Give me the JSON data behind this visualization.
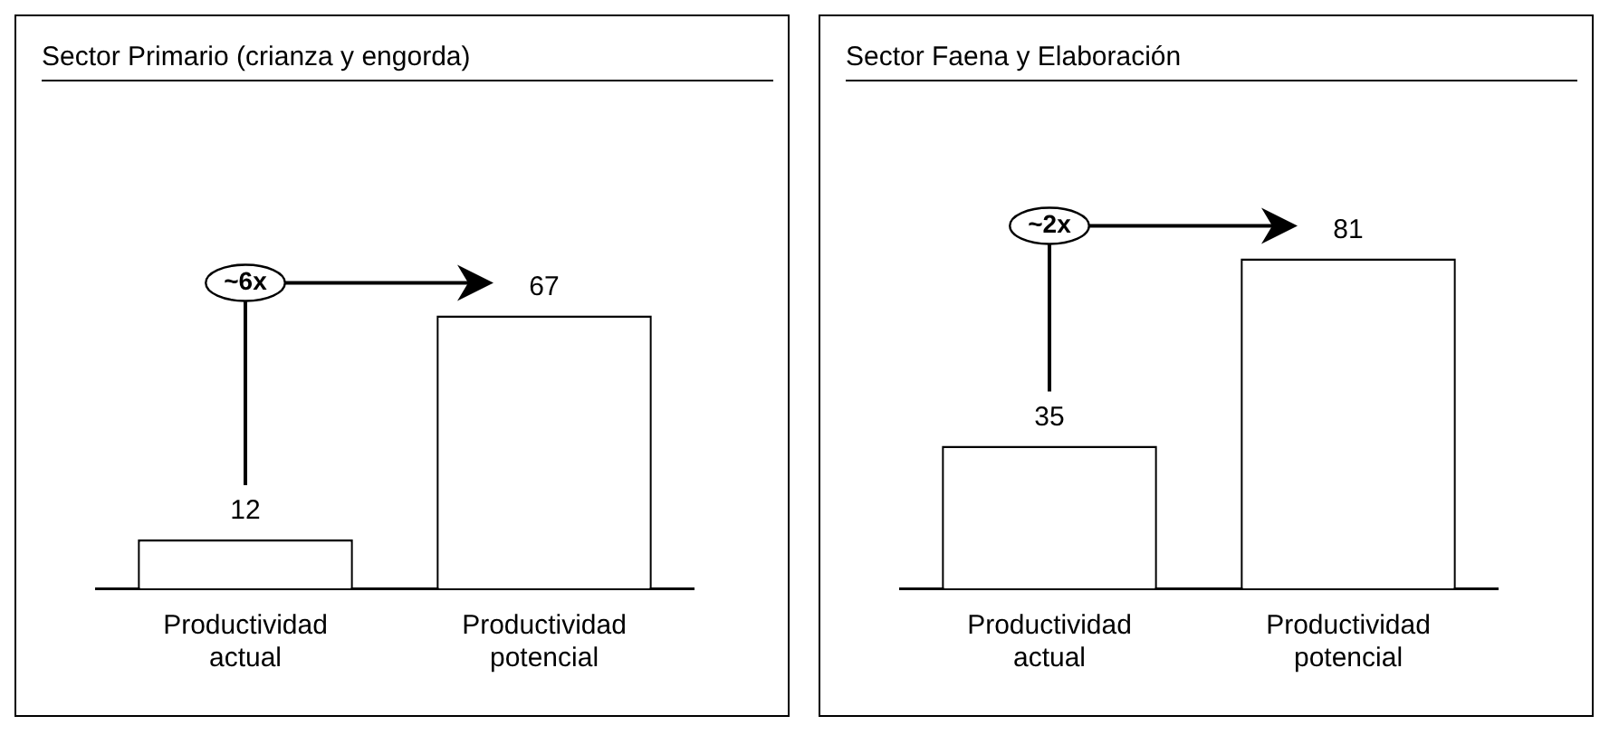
{
  "chart_data": [
    {
      "type": "bar",
      "title": "Sector Primario (crianza y engorda)",
      "categories": [
        "Productividad actual",
        "Productividad potencial"
      ],
      "values": [
        12,
        67
      ],
      "color": "#ffffff",
      "data_labels": true,
      "grid": false,
      "legend": false,
      "annotations": [
        "~6x"
      ]
    },
    {
      "type": "bar",
      "title": "Sector Faena y Elaboración",
      "categories": [
        "Productividad actual",
        "Productividad potencial"
      ],
      "values": [
        35,
        81
      ],
      "color": "#ffffff",
      "data_labels": true,
      "grid": false,
      "legend": false,
      "annotations": [
        "~2x"
      ]
    }
  ]
}
